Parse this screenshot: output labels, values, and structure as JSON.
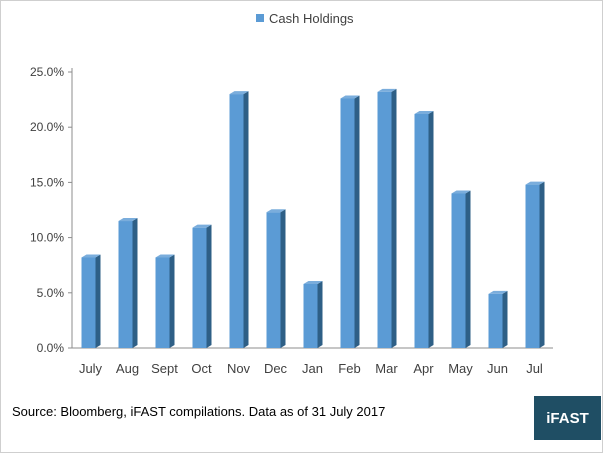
{
  "chart_data": {
    "type": "bar",
    "title": "",
    "xlabel": "",
    "ylabel": "",
    "categories": [
      "July",
      "Aug",
      "Sept",
      "Oct",
      "Nov",
      "Dec",
      "Jan",
      "Feb",
      "Mar",
      "Apr",
      "May",
      "Jun",
      "Jul"
    ],
    "series": [
      {
        "name": "Cash Holdings",
        "values": [
          8.2,
          11.5,
          8.2,
          10.9,
          23.0,
          12.3,
          5.8,
          22.6,
          23.2,
          21.2,
          14.0,
          4.9,
          14.8
        ]
      }
    ],
    "ylim": [
      0,
      25
    ],
    "yticks": [
      "0.0%",
      "5.0%",
      "10.0%",
      "15.0%",
      "20.0%",
      "25.0%"
    ],
    "ytick_values": [
      0,
      5,
      10,
      15,
      20,
      25
    ],
    "grid": false,
    "legend_position": "top-center",
    "colors": {
      "bar_front": "#5b9bd5",
      "bar_side": "#2e5f86",
      "bar_top": "#7aaddc",
      "axis": "#8c8c8c"
    }
  },
  "footer": {
    "source": "Source: Bloomberg, iFAST compilations. Data as of 31 July 2017",
    "logo_text": "iFAST"
  }
}
